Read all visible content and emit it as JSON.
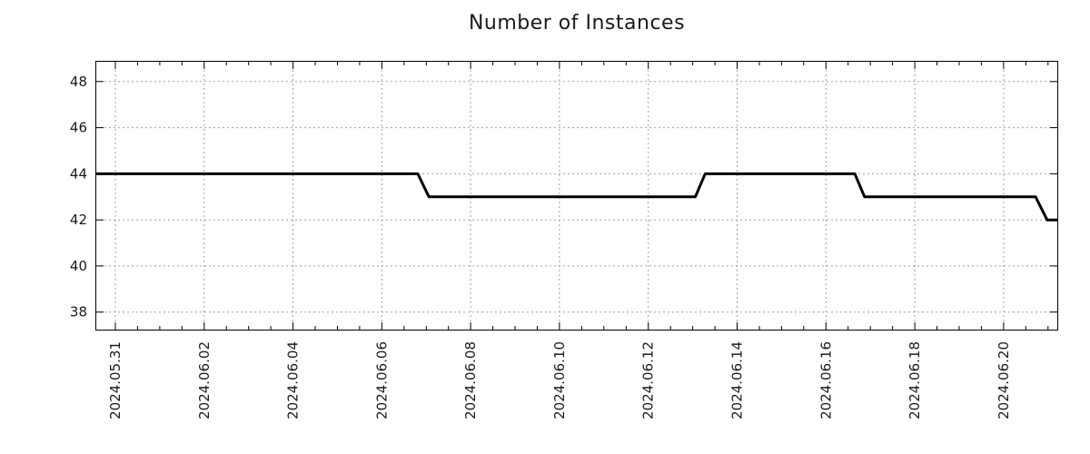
{
  "chart_data": {
    "type": "line",
    "title": "Number of Instances",
    "xlabel": "",
    "ylabel": "",
    "grid": true,
    "legend": "none",
    "x_axis": {
      "offsets_origin": "2024.05.31",
      "tick_labels": [
        "2024.05.31",
        "2024.06.02",
        "2024.06.04",
        "2024.06.06",
        "2024.06.08",
        "2024.06.10",
        "2024.06.12",
        "2024.06.14",
        "2024.06.16",
        "2024.06.18",
        "2024.06.20"
      ],
      "tick_offsets_days": [
        0,
        2,
        4,
        6,
        8,
        10,
        12,
        14,
        16,
        18,
        20
      ],
      "minor_tick_interval_days": 0.5,
      "lim_days": [
        -0.45,
        21.23
      ],
      "label_rotation_deg": -90
    },
    "y_axis": {
      "ticks": [
        38,
        40,
        42,
        44,
        46,
        48
      ],
      "lim": [
        37.2,
        48.9
      ]
    },
    "series": [
      {
        "name": "Number of Instances",
        "color": "#000000",
        "line_width": 3,
        "points_day_value": [
          [
            -0.45,
            44
          ],
          [
            6.81,
            44
          ],
          [
            7.06,
            43
          ],
          [
            13.06,
            43
          ],
          [
            13.28,
            44
          ],
          [
            16.65,
            44
          ],
          [
            16.87,
            43
          ],
          [
            20.72,
            43
          ],
          [
            20.98,
            42
          ],
          [
            21.23,
            42
          ]
        ],
        "step_summary": [
          {
            "value": 44,
            "from": "left edge (≈2024.05.30 13:00)",
            "to": "≈2024.06.07 00:00"
          },
          {
            "value": 43,
            "from": "≈2024.06.07 00:00",
            "to": "≈2024.06.13 02:00"
          },
          {
            "value": 44,
            "from": "≈2024.06.13 02:00",
            "to": "≈2024.06.16 16:00"
          },
          {
            "value": 43,
            "from": "≈2024.06.16 16:00",
            "to": "≈2024.06.21 00:00"
          },
          {
            "value": 42,
            "from": "≈2024.06.21 00:00",
            "to": "right edge (≈2024.06.21 06:00)"
          }
        ]
      }
    ],
    "colors": {
      "line": "#000000",
      "grid": "#a0a0a0",
      "axis": "#000000",
      "text": "#1a1a1a",
      "background": "#ffffff"
    }
  }
}
